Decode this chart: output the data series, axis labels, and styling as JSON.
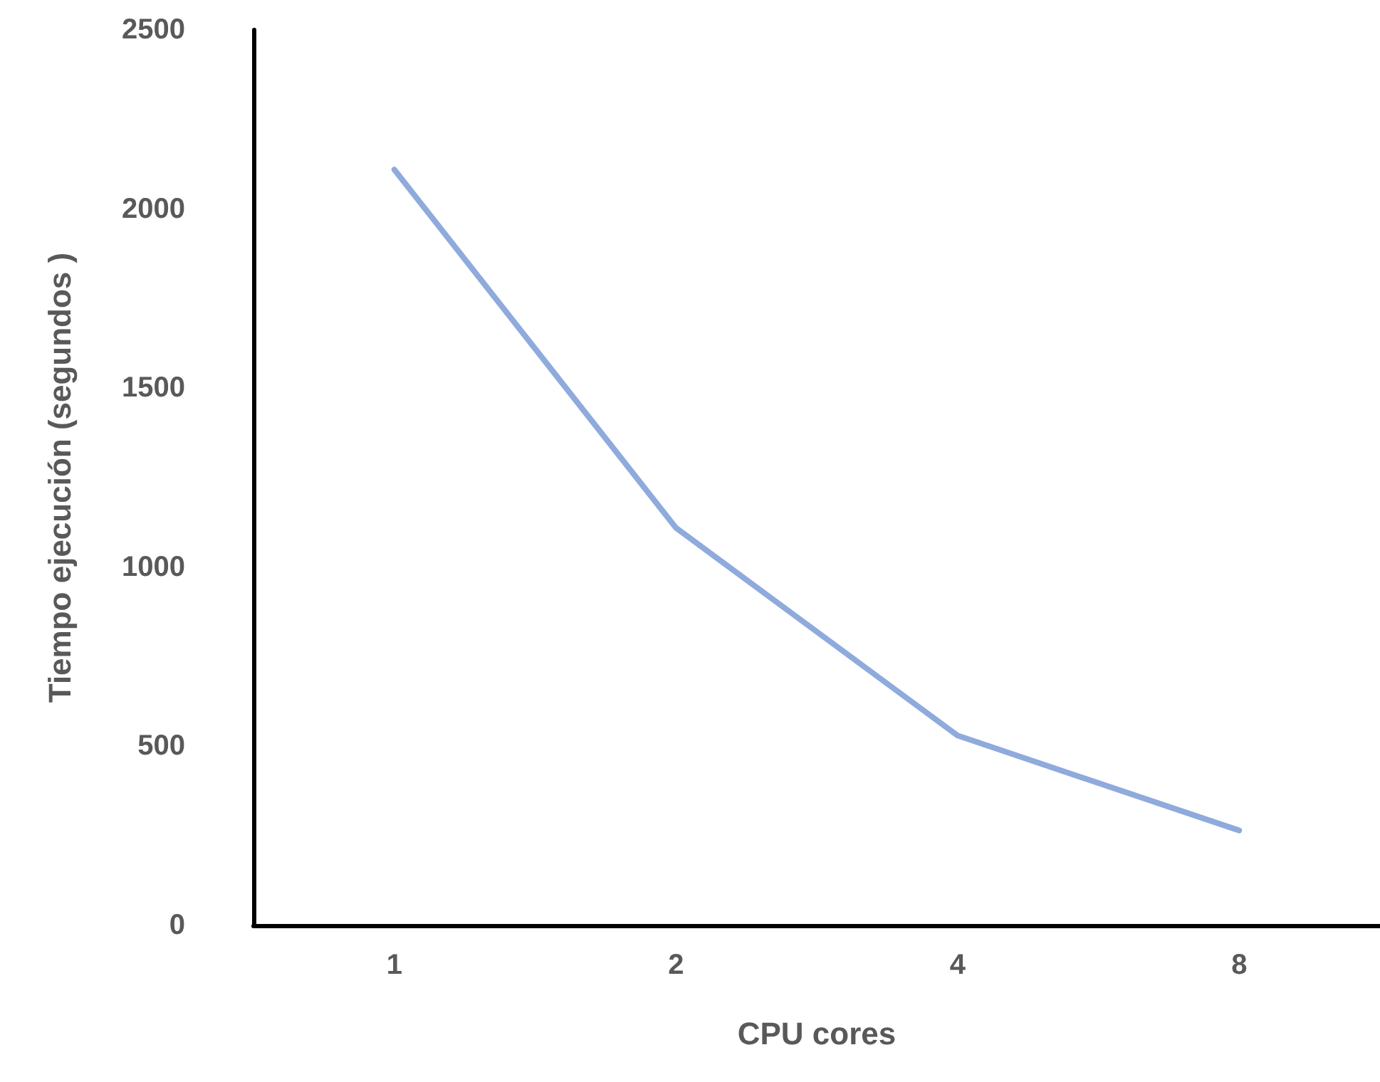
{
  "chart_data": {
    "type": "line",
    "xlabel": "CPU cores",
    "ylabel": "Tiempo ejecución (segundos )",
    "categories": [
      "1",
      "2",
      "4",
      "8"
    ],
    "series": [
      {
        "color": "#8faadc",
        "values": [
          2110,
          1110,
          530,
          265
        ]
      }
    ],
    "ylim": [
      0,
      2500
    ],
    "yticks": [
      0,
      500,
      1000,
      1500,
      2000,
      2500
    ],
    "grid": false,
    "marker": "none",
    "line_style": "solid"
  }
}
